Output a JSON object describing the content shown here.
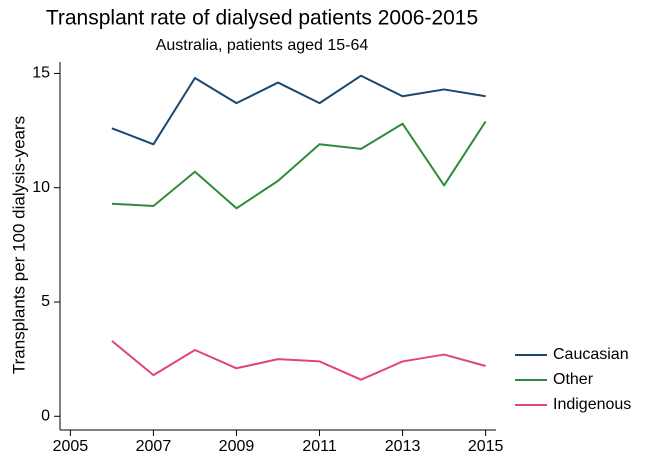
{
  "chart_data": {
    "type": "line",
    "title": "Transplant rate of dialysed patients 2006-2015",
    "subtitle": "Australia, patients aged 15-64",
    "y_label": "Transplants per 100 dialysis-years",
    "x": [
      2006,
      2007,
      2008,
      2009,
      2010,
      2011,
      2012,
      2013,
      2014,
      2015
    ],
    "series": [
      {
        "name": "Caucasian",
        "color": "#1a476f",
        "values": [
          12.6,
          11.9,
          14.8,
          13.7,
          14.6,
          13.7,
          14.9,
          14.0,
          14.3,
          14.0
        ]
      },
      {
        "name": "Other",
        "color": "#2e8b3b",
        "values": [
          9.3,
          9.2,
          10.7,
          9.1,
          10.3,
          11.9,
          11.7,
          12.8,
          10.1,
          12.9
        ]
      },
      {
        "name": "Indigenous",
        "color": "#e0457b",
        "values": [
          3.3,
          1.8,
          2.9,
          2.1,
          2.5,
          2.4,
          1.6,
          2.4,
          2.7,
          2.2
        ]
      }
    ],
    "xlim": [
      2004.75,
      2015.25
    ],
    "xticks": [
      2005,
      2007,
      2009,
      2011,
      2013,
      2015
    ],
    "ylim": [
      -0.6,
      15.5
    ],
    "yticks": [
      0,
      5,
      10,
      15
    ],
    "grid": false,
    "legend": "right"
  }
}
